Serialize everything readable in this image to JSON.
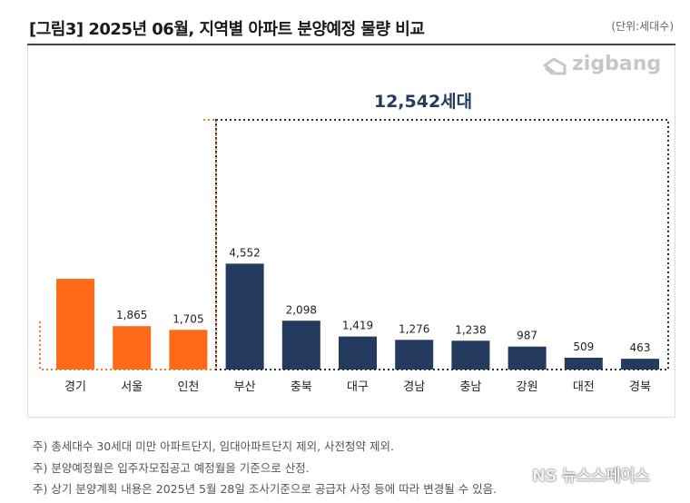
{
  "header": {
    "title": "[그림3] 2025년 06월, 지역별 아파트 분양예정 물량 비교",
    "unit": "(단위:세대수)"
  },
  "logo": {
    "text": "zigbang",
    "icon": "zigbang-logo-icon"
  },
  "colors": {
    "orange": "#ff6a1a",
    "navy": "#243a5e",
    "orange_line": "#f07a2c",
    "navy_line": "#1f3350"
  },
  "chart_data": {
    "type": "bar",
    "categories": [
      "경기",
      "서울",
      "인천",
      "부산",
      "충북",
      "대구",
      "경남",
      "충남",
      "강원",
      "대전",
      "경북"
    ],
    "values": [
      3900,
      1865,
      1705,
      4552,
      2098,
      1419,
      1276,
      1238,
      987,
      509,
      463
    ],
    "data_labels": [
      "",
      "1,865",
      "1,705",
      "4,552",
      "2,098",
      "1,419",
      "1,276",
      "1,238",
      "987",
      "509",
      "463"
    ],
    "group": {
      "capital_area": [
        "경기",
        "서울",
        "인천"
      ],
      "non_capital": [
        "부산",
        "충북",
        "대구",
        "경남",
        "충남",
        "강원",
        "대전",
        "경북"
      ]
    },
    "annotation": "12,542세대",
    "ylim": [
      0,
      4800
    ],
    "grid": false,
    "legend": "none",
    "title": "",
    "xlabel": "",
    "ylabel": ""
  },
  "notes": [
    "주) 총세대수 30세대 미만 아파트단지, 임대아파트단지 제외, 사전청약 제외.",
    "주) 분양예정월은 입주자모집공고 예정월을 기준으로 산정.",
    "주) 상기 분양계획 내용은 2025년 5월  28일  조사기준으로 공급자 사정 등에 따라 변경될 수 있음."
  ],
  "watermark": "NS 뉴스스페이스"
}
